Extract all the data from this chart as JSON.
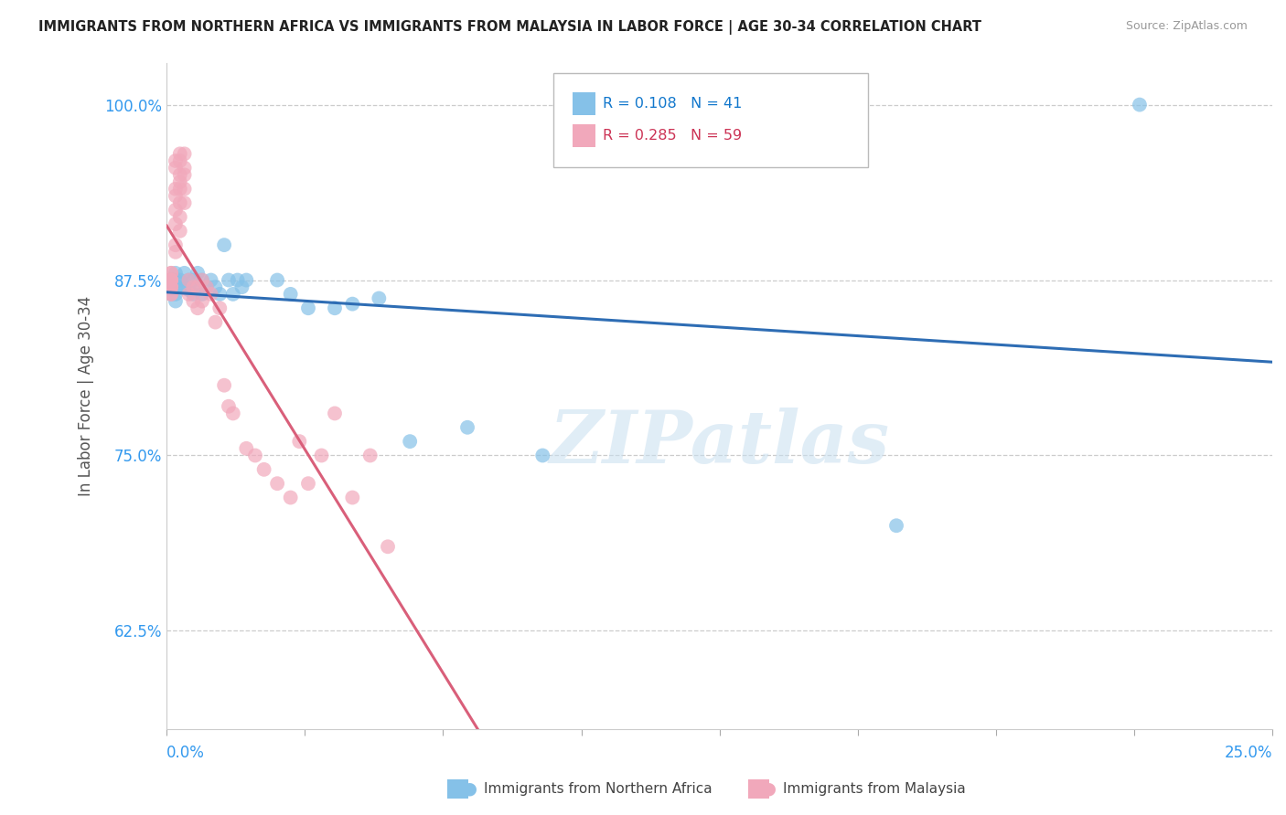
{
  "title": "IMMIGRANTS FROM NORTHERN AFRICA VS IMMIGRANTS FROM MALAYSIA IN LABOR FORCE | AGE 30-34 CORRELATION CHART",
  "source": "Source: ZipAtlas.com",
  "ylabel": "In Labor Force | Age 30-34",
  "xlim": [
    0.0,
    0.25
  ],
  "ylim": [
    0.555,
    1.03
  ],
  "yticks": [
    0.625,
    0.75,
    0.875,
    1.0
  ],
  "ytick_labels": [
    "62.5%",
    "75.0%",
    "87.5%",
    "100.0%"
  ],
  "xticks": [
    0.0,
    0.03125,
    0.0625,
    0.09375,
    0.125,
    0.15625,
    0.1875,
    0.21875,
    0.25
  ],
  "xtick_labels": [
    "",
    "",
    "",
    "",
    "",
    "",
    "",
    "",
    ""
  ],
  "xedge_labels": [
    "0.0%",
    "25.0%"
  ],
  "legend_blue_r": "0.108",
  "legend_blue_n": "41",
  "legend_pink_r": "0.285",
  "legend_pink_n": "59",
  "blue_color": "#85C1E8",
  "pink_color": "#F1A8BB",
  "blue_line_color": "#2E6DB4",
  "pink_line_color": "#D95F7A",
  "watermark_text": "ZIPatlas",
  "legend_label_blue": "Immigrants from Northern Africa",
  "legend_label_pink": "Immigrants from Malaysia",
  "blue_scatter_x": [
    0.001,
    0.001,
    0.001,
    0.002,
    0.002,
    0.002,
    0.002,
    0.002,
    0.003,
    0.003,
    0.004,
    0.004,
    0.005,
    0.005,
    0.006,
    0.006,
    0.007,
    0.007,
    0.008,
    0.008,
    0.009,
    0.01,
    0.011,
    0.012,
    0.013,
    0.014,
    0.015,
    0.016,
    0.017,
    0.018,
    0.025,
    0.028,
    0.032,
    0.038,
    0.042,
    0.048,
    0.055,
    0.068,
    0.085,
    0.165,
    0.22
  ],
  "blue_scatter_y": [
    0.875,
    0.87,
    0.865,
    0.88,
    0.875,
    0.87,
    0.865,
    0.86,
    0.875,
    0.87,
    0.88,
    0.87,
    0.875,
    0.868,
    0.875,
    0.865,
    0.88,
    0.87,
    0.875,
    0.865,
    0.87,
    0.875,
    0.87,
    0.865,
    0.9,
    0.875,
    0.865,
    0.875,
    0.87,
    0.875,
    0.875,
    0.865,
    0.855,
    0.855,
    0.858,
    0.862,
    0.76,
    0.77,
    0.75,
    0.7,
    1.0
  ],
  "pink_scatter_x": [
    0.001,
    0.001,
    0.001,
    0.001,
    0.001,
    0.001,
    0.001,
    0.001,
    0.001,
    0.001,
    0.001,
    0.002,
    0.002,
    0.002,
    0.002,
    0.002,
    0.002,
    0.002,
    0.002,
    0.003,
    0.003,
    0.003,
    0.003,
    0.003,
    0.003,
    0.003,
    0.003,
    0.004,
    0.004,
    0.004,
    0.004,
    0.004,
    0.005,
    0.005,
    0.006,
    0.006,
    0.007,
    0.007,
    0.008,
    0.008,
    0.009,
    0.01,
    0.011,
    0.012,
    0.013,
    0.014,
    0.015,
    0.018,
    0.02,
    0.022,
    0.025,
    0.028,
    0.03,
    0.032,
    0.035,
    0.038,
    0.042,
    0.046,
    0.05
  ],
  "pink_scatter_y": [
    0.875,
    0.87,
    0.88,
    0.865,
    0.875,
    0.87,
    0.865,
    0.88,
    0.875,
    0.87,
    0.875,
    0.96,
    0.955,
    0.94,
    0.935,
    0.925,
    0.915,
    0.9,
    0.895,
    0.965,
    0.96,
    0.95,
    0.945,
    0.94,
    0.93,
    0.92,
    0.91,
    0.965,
    0.955,
    0.95,
    0.94,
    0.93,
    0.875,
    0.865,
    0.87,
    0.86,
    0.87,
    0.855,
    0.875,
    0.86,
    0.87,
    0.865,
    0.845,
    0.855,
    0.8,
    0.785,
    0.78,
    0.755,
    0.75,
    0.74,
    0.73,
    0.72,
    0.76,
    0.73,
    0.75,
    0.78,
    0.72,
    0.75,
    0.685
  ]
}
